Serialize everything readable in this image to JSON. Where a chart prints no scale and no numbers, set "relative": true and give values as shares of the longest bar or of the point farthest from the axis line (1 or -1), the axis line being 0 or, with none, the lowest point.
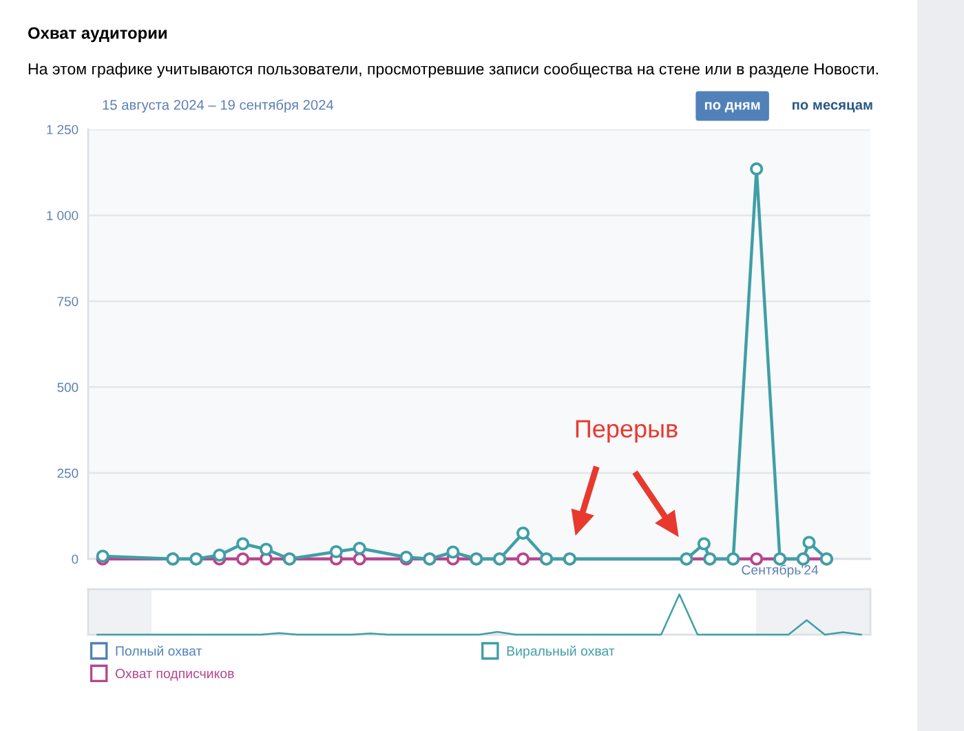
{
  "chart_data": [
    {
      "type": "line",
      "title": "Охват аудитории",
      "subtitle": "На этом графике учитываются пользователи, просмотревшие записи сообщества на стене или в разделе Новости.",
      "annotations": [
        "15 августа 2024 – 19 сентября 2024",
        "по дням",
        "по месяцам",
        "Перерыв"
      ],
      "categories": [
        null,
        null,
        null,
        null,
        null,
        null,
        null,
        null,
        null,
        null,
        null,
        null,
        null,
        null,
        null,
        null,
        null,
        null,
        null,
        null,
        null,
        null,
        null,
        null,
        null,
        null,
        null,
        null,
        null,
        null,
        null,
        null,
        null,
        null,
        null,
        null,
        null,
        null,
        null,
        null,
        null,
        null,
        null,
        null,
        null,
        null,
        null,
        null,
        null,
        null,
        null,
        null,
        null,
        null,
        null,
        null,
        null,
        null,
        null,
        null,
        null,
        null,
        null,
        null,
        null,
        null,
        null,
        null,
        null,
        null,
        null,
        null,
        null,
        null,
        null,
        null,
        null,
        null,
        null,
        null,
        null,
        null,
        null,
        null,
        null,
        null,
        null,
        null,
        null,
        null,
        null,
        null,
        null,
        null,
        null,
        null,
        null,
        null,
        null,
        null,
        null,
        null,
        null,
        null,
        null,
        null,
        null,
        null,
        null,
        null,
        null,
        null,
        null,
        null,
        null,
        null,
        null,
        null,
        "Сентябрь'24",
        null,
        null,
        null,
        null,
        null,
        null,
        null,
        null,
        null,
        null,
        null,
        null,
        null,
        null,
        null
      ],
      "series": [
        {
          "name": "Полный охват",
          "color": "#5181b8",
          "values": [
            null,
            null,
            null,
            null,
            null,
            null,
            null,
            null,
            null,
            null,
            null,
            null,
            null,
            null,
            null,
            null,
            null,
            null,
            null,
            null,
            null,
            null,
            null,
            null,
            null,
            null,
            null,
            null,
            null,
            null,
            null,
            null,
            null,
            null,
            null,
            null,
            null,
            null,
            null,
            null,
            null,
            null,
            null,
            null,
            null,
            null,
            null,
            null,
            null,
            null,
            null,
            null,
            null,
            null,
            null,
            null,
            null,
            null,
            null,
            null,
            null,
            null,
            null,
            null,
            null,
            null,
            null,
            null,
            null,
            null,
            null,
            null,
            null,
            null,
            null,
            null,
            null,
            null,
            null,
            null,
            null,
            null,
            null,
            null,
            null,
            null,
            null,
            null,
            null,
            null,
            null,
            null,
            null,
            null,
            null,
            null,
            null,
            null,
            null,
            null,
            null,
            null,
            null,
            null,
            null,
            null,
            null,
            null,
            null,
            null,
            null,
            null,
            null,
            null,
            null,
            null,
            null,
            null,
            null,
            null,
            null,
            null,
            null,
            null,
            null,
            null,
            null,
            null,
            null,
            null,
            null,
            null,
            null,
            null
          ]
        },
        {
          "name": "Виральный охват",
          "color": "#3f9fa6",
          "values": [
            null,
            null,
            8,
            null,
            null,
            null,
            null,
            null,
            null,
            null,
            null,
            null,
            null,
            null,
            0,
            null,
            null,
            null,
            0,
            null,
            null,
            null,
            11,
            null,
            null,
            null,
            44,
            null,
            null,
            null,
            28,
            null,
            null,
            null,
            0,
            null,
            null,
            null,
            null,
            null,
            null,
            null,
            21,
            null,
            null,
            null,
            31,
            null,
            null,
            null,
            null,
            null,
            null,
            null,
            5,
            null,
            null,
            null,
            0,
            null,
            null,
            null,
            20,
            null,
            null,
            null,
            0,
            null,
            null,
            null,
            0,
            null,
            null,
            null,
            75,
            null,
            null,
            null,
            0,
            null,
            null,
            null,
            0,
            null,
            null,
            null,
            null,
            null,
            null,
            null,
            null,
            null,
            null,
            null,
            null,
            null,
            null,
            null,
            null,
            null,
            null,
            null,
            0,
            null,
            null,
            44,
            0,
            null,
            null,
            null,
            0,
            null,
            null,
            null,
            1135,
            null,
            null,
            null,
            0,
            null,
            null,
            null,
            0,
            48,
            null,
            null,
            0,
            null,
            null,
            null,
            null,
            null,
            null,
            null
          ]
        },
        {
          "name": "Охват подписчиков",
          "color": "#b6468d",
          "values": [
            null,
            null,
            0,
            null,
            null,
            null,
            null,
            null,
            null,
            null,
            null,
            null,
            null,
            null,
            0,
            null,
            null,
            null,
            0,
            null,
            null,
            null,
            0,
            null,
            null,
            null,
            0,
            null,
            null,
            null,
            0,
            null,
            null,
            null,
            0,
            null,
            null,
            null,
            null,
            null,
            null,
            null,
            0,
            null,
            null,
            null,
            0,
            null,
            null,
            null,
            null,
            null,
            null,
            null,
            0,
            null,
            null,
            null,
            0,
            null,
            null,
            null,
            0,
            null,
            null,
            null,
            0,
            null,
            null,
            null,
            0,
            null,
            null,
            null,
            0,
            null,
            null,
            null,
            0,
            null,
            null,
            null,
            0,
            null,
            null,
            null,
            null,
            null,
            null,
            null,
            null,
            null,
            null,
            null,
            null,
            null,
            null,
            null,
            null,
            null,
            null,
            null,
            0,
            null,
            null,
            null,
            0,
            null,
            null,
            null,
            0,
            null,
            null,
            null,
            0,
            null,
            null,
            null,
            0,
            null,
            null,
            null,
            0,
            null,
            null,
            null,
            0,
            null,
            null,
            null,
            null,
            null,
            null,
            null
          ]
        }
      ],
      "ylim": [
        0,
        1250
      ],
      "yticks": [
        0,
        250,
        500,
        750,
        {
          "value": 1000,
          "label": "1 000"
        },
        {
          "value": 1250,
          "label": "1 250"
        }
      ],
      "grid": "y",
      "legend": "bottom",
      "marker": "circle",
      "line_style": "solid"
    },
    {
      "type": "line",
      "relative": true,
      "categories": [
        null,
        null,
        null,
        null,
        null,
        null,
        null,
        null,
        null,
        null,
        null,
        null,
        null,
        null,
        null,
        null,
        null,
        null,
        null,
        null,
        null,
        null,
        null,
        null,
        null,
        null,
        null,
        null,
        null,
        null,
        null,
        null,
        null,
        null,
        null,
        null,
        null,
        null,
        null,
        null,
        null,
        null,
        null
      ],
      "series": [
        {
          "color": "#3f9fa6",
          "values": [
            0,
            0,
            0,
            0,
            0,
            0,
            0,
            0,
            0,
            0,
            0.04,
            0,
            0,
            0,
            0,
            0.03,
            0,
            0,
            0,
            0,
            0,
            0,
            0.07,
            0,
            0,
            0,
            0,
            0,
            0,
            0,
            0,
            0,
            1,
            0,
            0,
            0,
            0,
            0,
            0,
            0.36,
            0,
            0.06,
            0
          ]
        }
      ]
    }
  ]
}
